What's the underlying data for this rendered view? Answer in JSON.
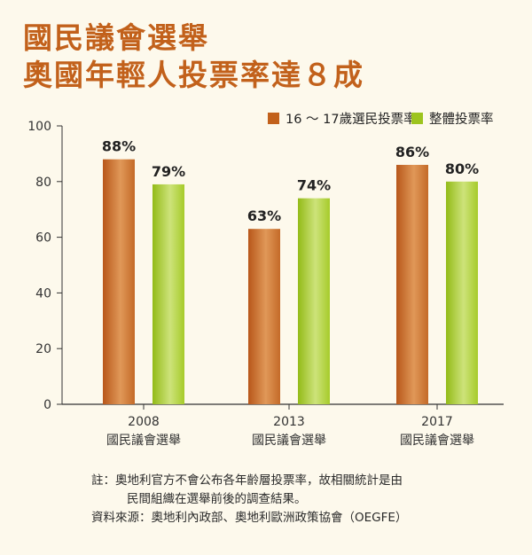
{
  "title": {
    "line1": "國民議會選舉",
    "line2": "奧國年輕人投票率達８成"
  },
  "colors": {
    "youth": "#c2611b",
    "overall": "#9dc41e",
    "title": "#c2611b"
  },
  "chart_data": {
    "type": "bar",
    "categories": [
      {
        "year": "2008",
        "label": "國民議會選舉"
      },
      {
        "year": "2013",
        "label": "國民議會選舉"
      },
      {
        "year": "2017",
        "label": "國民議會選舉"
      }
    ],
    "series": [
      {
        "name": "16 ～ 17歲選民投票率",
        "values": [
          88,
          63,
          86
        ],
        "labels": [
          "88%",
          "63%",
          "86%"
        ],
        "color": "#c2611b"
      },
      {
        "name": "整體投票率",
        "values": [
          79,
          74,
          80
        ],
        "labels": [
          "79%",
          "74%",
          "80%"
        ],
        "color": "#9dc41e"
      }
    ],
    "ylim": [
      0,
      100
    ],
    "yticks": [
      0,
      20,
      40,
      60,
      80,
      100
    ],
    "ytick_labels": [
      "0",
      "20",
      "40",
      "60",
      "80",
      "100"
    ],
    "legend_position": "top-right",
    "grid": false
  },
  "notes": {
    "note_line1": "註：奧地利官方不會公布各年齡層投票率，故相關統計是由",
    "note_line2": "民間組織在選舉前後的調查結果。",
    "source": "資料來源：奧地利內政部、奧地利歐洲政策協會（OEGFE）"
  }
}
